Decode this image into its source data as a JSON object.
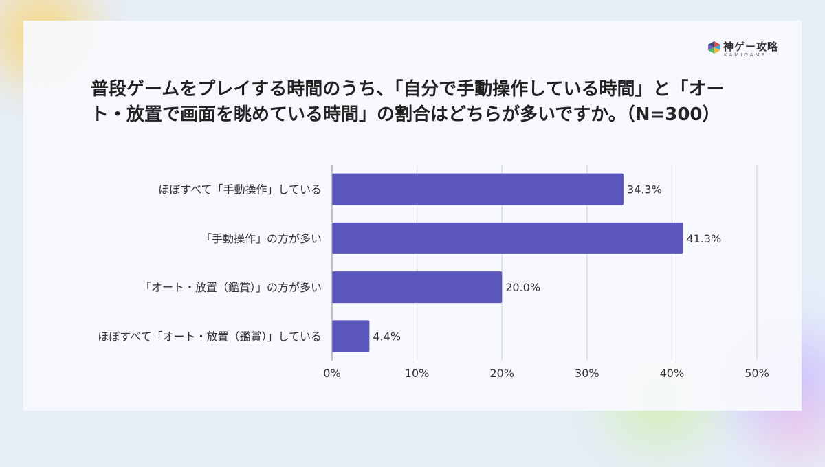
{
  "logo": {
    "text": "神ゲー攻略",
    "subtext": "KAMIGAME",
    "icon": "kamigame-logo-icon"
  },
  "colors": {
    "bar": "#5b56bb",
    "grid": "#c9ced8",
    "axis": "#9a9a9a"
  },
  "chart_data": {
    "type": "bar",
    "orientation": "horizontal",
    "title": "普段ゲームをプレイする時間のうち、「自分で手動操作している時間」と「オート・放置で画面を眺めている時間」の割合はどちらが多いですか。（N=300）",
    "categories": [
      "ほぼすべて「手動操作」している",
      "「手動操作」の方が多い",
      "「オート・放置（鑑賞）」の方が多い",
      "ほぼすべて「オート・放置（鑑賞）」している"
    ],
    "values": [
      34.3,
      41.3,
      20.0,
      4.4
    ],
    "value_labels": [
      "34.3%",
      "41.3%",
      "20.0%",
      "4.4%"
    ],
    "xlim": [
      0,
      50
    ],
    "xticks": [
      0,
      10,
      20,
      30,
      40,
      50
    ],
    "xtick_labels": [
      "0%",
      "10%",
      "20%",
      "30%",
      "40%",
      "50%"
    ],
    "grid": true,
    "legend": "none"
  }
}
